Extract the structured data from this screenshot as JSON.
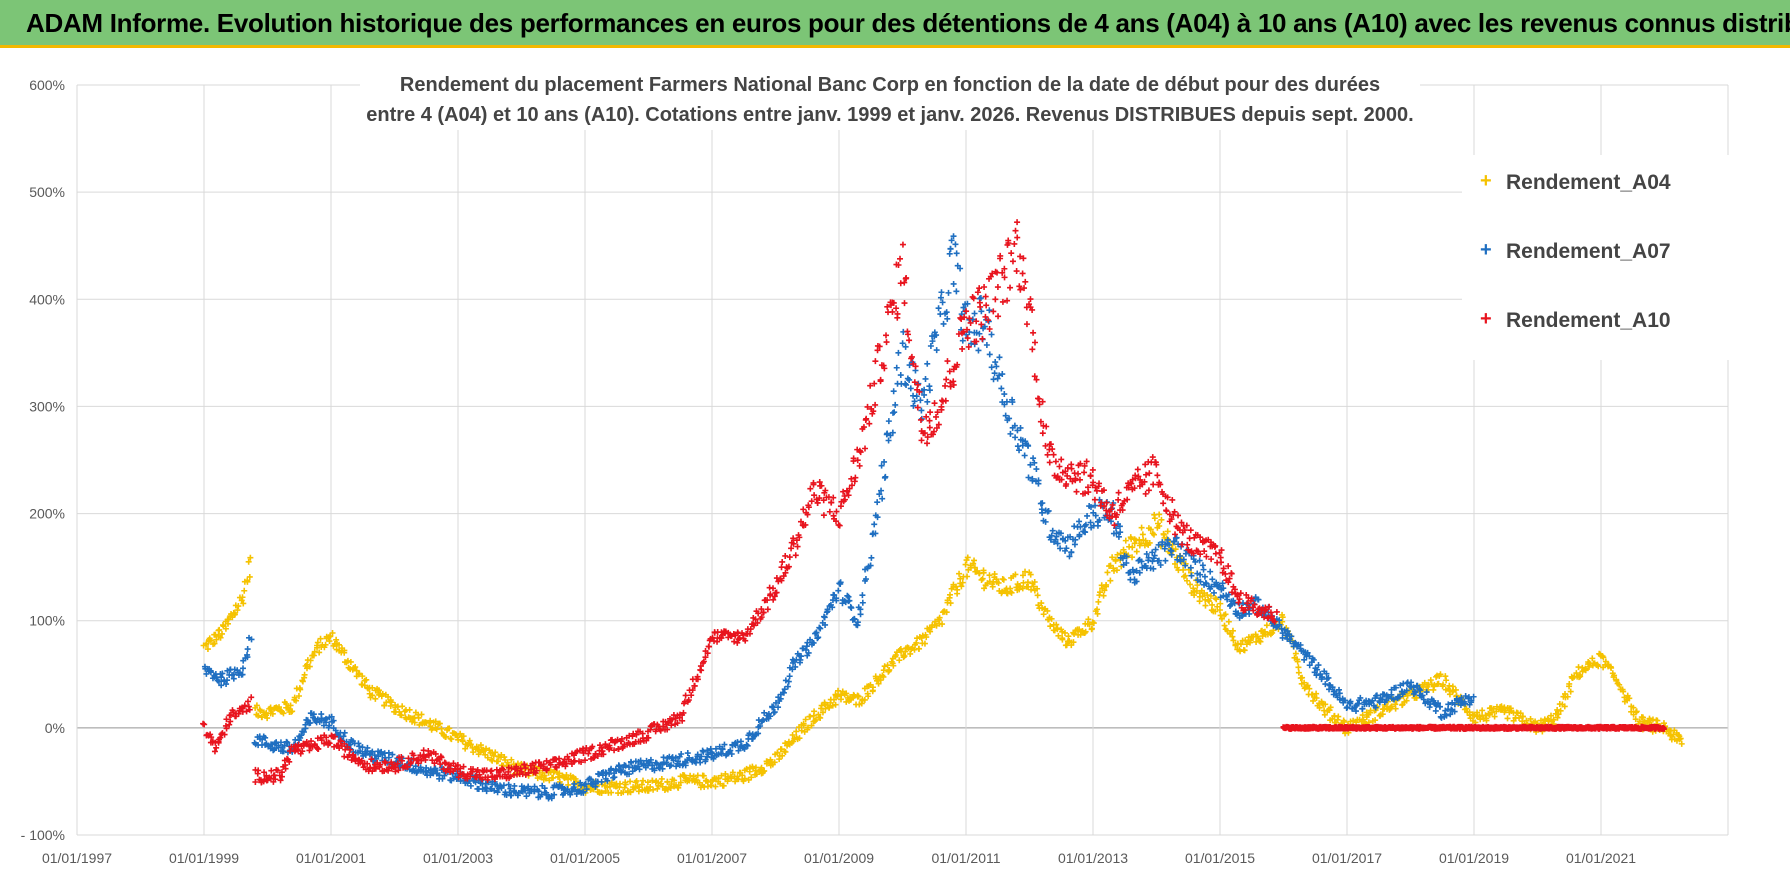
{
  "banner": {
    "title": "ADAM Informe. Evolution historique des performances en euros pour des détentions de 4 ans (A04) à 10 ans (A10) avec les revenus connus distribués"
  },
  "colors": {
    "banner_bg": "#7cc576",
    "banner_accent": "#f2b800",
    "A04": "#f5c200",
    "A07": "#1f6fc1",
    "A10": "#e8141e"
  },
  "chart_data": {
    "type": "scatter",
    "title_line1": "Rendement du placement Farmers National Banc Corp en fonction de la date de début pour des durées",
    "title_line2": "entre 4 (A04) et 10 ans (A10).  Cotations entre janv. 1999 et janv. 2026. Revenus DISTRIBUES depuis sept. 2000.",
    "xlim": [
      1997.0,
      2023.0
    ],
    "ylim": [
      -100,
      600
    ],
    "y_ticks": [
      -100,
      0,
      100,
      200,
      300,
      400,
      500,
      600
    ],
    "y_tick_labels": [
      "- 100%",
      "0%",
      "100%",
      "200%",
      "300%",
      "400%",
      "500%",
      "600%"
    ],
    "x_ticks": [
      1997,
      1999,
      2001,
      2003,
      2005,
      2007,
      2009,
      2011,
      2013,
      2015,
      2017,
      2019,
      2021
    ],
    "x_tick_labels": [
      "01/01/1997",
      "01/01/1999",
      "01/01/2001",
      "01/01/2003",
      "01/01/2005",
      "01/01/2007",
      "01/01/2009",
      "01/01/2011",
      "01/01/2013",
      "01/01/2015",
      "01/01/2017",
      "01/01/2019",
      "01/01/2021"
    ],
    "grid": true,
    "legend_position": "top-right",
    "marker": "+",
    "series": [
      {
        "name": "Rendement_A04",
        "x": [
          1999.0,
          1999.3,
          1999.6,
          1999.75,
          1999.8,
          2000.0,
          2000.4,
          2000.6,
          2000.8,
          2001.0,
          2001.3,
          2001.6,
          2002.0,
          2002.5,
          2003.0,
          2003.5,
          2004.0,
          2004.5,
          2005.0,
          2005.5,
          2006.0,
          2006.5,
          2007.0,
          2007.5,
          2008.0,
          2008.3,
          2008.6,
          2009.0,
          2009.3,
          2009.6,
          2010.0,
          2010.3,
          2010.6,
          2011.0,
          2011.3,
          2011.6,
          2012.0,
          2012.3,
          2012.6,
          2013.0,
          2013.3,
          2013.6,
          2014.0,
          2014.3,
          2014.6,
          2015.0,
          2015.3,
          2015.6,
          2016.0,
          2016.3,
          2016.6,
          2017.0,
          2017.5,
          2018.0,
          2018.5,
          2019.0,
          2019.5,
          2020.0,
          2020.3,
          2020.6,
          2021.0,
          2021.3,
          2021.6,
          2022.0,
          2022.3
        ],
        "y": [
          75,
          90,
          120,
          160,
          15,
          15,
          20,
          55,
          75,
          85,
          60,
          35,
          20,
          5,
          -10,
          -25,
          -40,
          -45,
          -55,
          -55,
          -55,
          -50,
          -50,
          -45,
          -30,
          -10,
          10,
          30,
          25,
          45,
          70,
          80,
          100,
          150,
          140,
          130,
          140,
          100,
          80,
          100,
          150,
          170,
          190,
          160,
          130,
          110,
          75,
          85,
          100,
          45,
          20,
          0,
          15,
          30,
          45,
          10,
          15,
          0,
          10,
          50,
          65,
          40,
          5,
          0,
          -15
        ]
      },
      {
        "name": "Rendement_A07",
        "x": [
          1999.0,
          1999.3,
          1999.6,
          1999.75,
          1999.8,
          2000.0,
          2000.4,
          2000.7,
          2001.0,
          2001.3,
          2001.6,
          2002.0,
          2002.5,
          2003.0,
          2003.5,
          2004.0,
          2004.5,
          2005.0,
          2005.5,
          2006.0,
          2006.5,
          2007.0,
          2007.5,
          2008.0,
          2008.3,
          2008.6,
          2009.0,
          2009.3,
          2009.6,
          2010.0,
          2010.3,
          2010.6,
          2010.8,
          2011.0,
          2011.3,
          2011.6,
          2012.0,
          2012.3,
          2012.6,
          2013.0,
          2013.3,
          2013.6,
          2014.0,
          2014.3,
          2014.6,
          2015.0,
          2015.3,
          2015.6,
          2016.0,
          2016.3,
          2016.6,
          2017.0,
          2017.5,
          2018.0,
          2018.5,
          2019.0
        ],
        "y": [
          55,
          45,
          55,
          85,
          -10,
          -15,
          -20,
          10,
          5,
          -15,
          -25,
          -30,
          -40,
          -45,
          -55,
          -60,
          -60,
          -55,
          -40,
          -35,
          -30,
          -25,
          -15,
          20,
          60,
          80,
          130,
          100,
          200,
          350,
          300,
          380,
          440,
          370,
          380,
          310,
          250,
          190,
          170,
          200,
          200,
          140,
          160,
          170,
          150,
          130,
          110,
          115,
          90,
          70,
          50,
          20,
          25,
          40,
          15,
          30
        ]
      },
      {
        "name": "Rendement_A10",
        "x": [
          1999.0,
          1999.2,
          1999.4,
          1999.6,
          1999.75,
          1999.8,
          2000.2,
          2000.4,
          2000.6,
          2001.0,
          2001.3,
          2001.6,
          2002.0,
          2002.5,
          2003.0,
          2003.5,
          2004.0,
          2004.5,
          2005.0,
          2005.5,
          2006.0,
          2006.5,
          2007.0,
          2007.5,
          2008.0,
          2008.3,
          2008.6,
          2009.0,
          2009.3,
          2009.6,
          2010.0,
          2010.3,
          2010.6,
          2011.0,
          2011.3,
          2011.6,
          2011.8,
          2012.0,
          2012.3,
          2012.6,
          2013.0,
          2013.3,
          2013.6,
          2014.0,
          2014.3,
          2014.6,
          2015.0,
          2015.3,
          2015.6,
          2015.9
        ],
        "y": [
          0,
          -20,
          10,
          15,
          25,
          -45,
          -45,
          -20,
          -20,
          -10,
          -25,
          -35,
          -35,
          -25,
          -40,
          -45,
          -40,
          -35,
          -25,
          -15,
          -5,
          10,
          85,
          85,
          130,
          170,
          220,
          200,
          250,
          330,
          430,
          280,
          300,
          380,
          390,
          420,
          450,
          390,
          250,
          240,
          230,
          200,
          220,
          240,
          190,
          170,
          160,
          120,
          110,
          105
        ]
      },
      {
        "name": "Rendement_A10_flat",
        "x": [
          2016.0,
          2022.0
        ],
        "y": [
          0,
          0
        ]
      }
    ],
    "legend": [
      "Rendement_A04",
      "Rendement_A07",
      "Rendement_A10"
    ]
  }
}
